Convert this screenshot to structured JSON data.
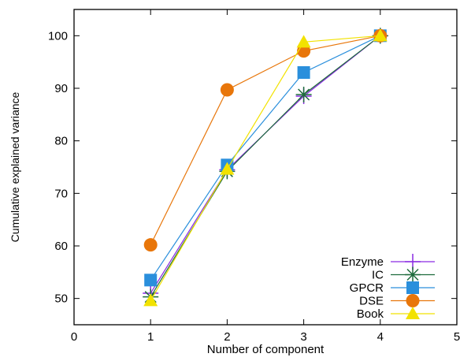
{
  "chart_data": {
    "type": "line",
    "title": "",
    "xlabel": "Number of component",
    "ylabel": "Cumulative explained variance",
    "xlim": [
      0,
      5
    ],
    "ylim": [
      45,
      105
    ],
    "xticks": [
      0,
      1,
      2,
      3,
      4,
      5
    ],
    "yticks": [
      50,
      60,
      70,
      80,
      90,
      100
    ],
    "grid": false,
    "legend_position": "bottom-right",
    "x": [
      1,
      2,
      3,
      4
    ],
    "series": [
      {
        "name": "Enzyme",
        "marker": "plus",
        "color": "#8a2be2",
        "values": [
          51.0,
          74.5,
          88.5,
          100
        ]
      },
      {
        "name": "IC",
        "marker": "asterisk",
        "color": "#1e6b3c",
        "values": [
          50.3,
          74.2,
          88.8,
          100
        ]
      },
      {
        "name": "GPCR",
        "marker": "square",
        "color": "#2a8fdc",
        "values": [
          53.5,
          75.4,
          93.0,
          100
        ]
      },
      {
        "name": "DSE",
        "marker": "circle",
        "color": "#e8760a",
        "values": [
          60.2,
          89.7,
          97.1,
          100
        ]
      },
      {
        "name": "Book",
        "marker": "triangle",
        "color": "#f2e200",
        "values": [
          49.6,
          74.6,
          98.8,
          100
        ]
      }
    ]
  }
}
